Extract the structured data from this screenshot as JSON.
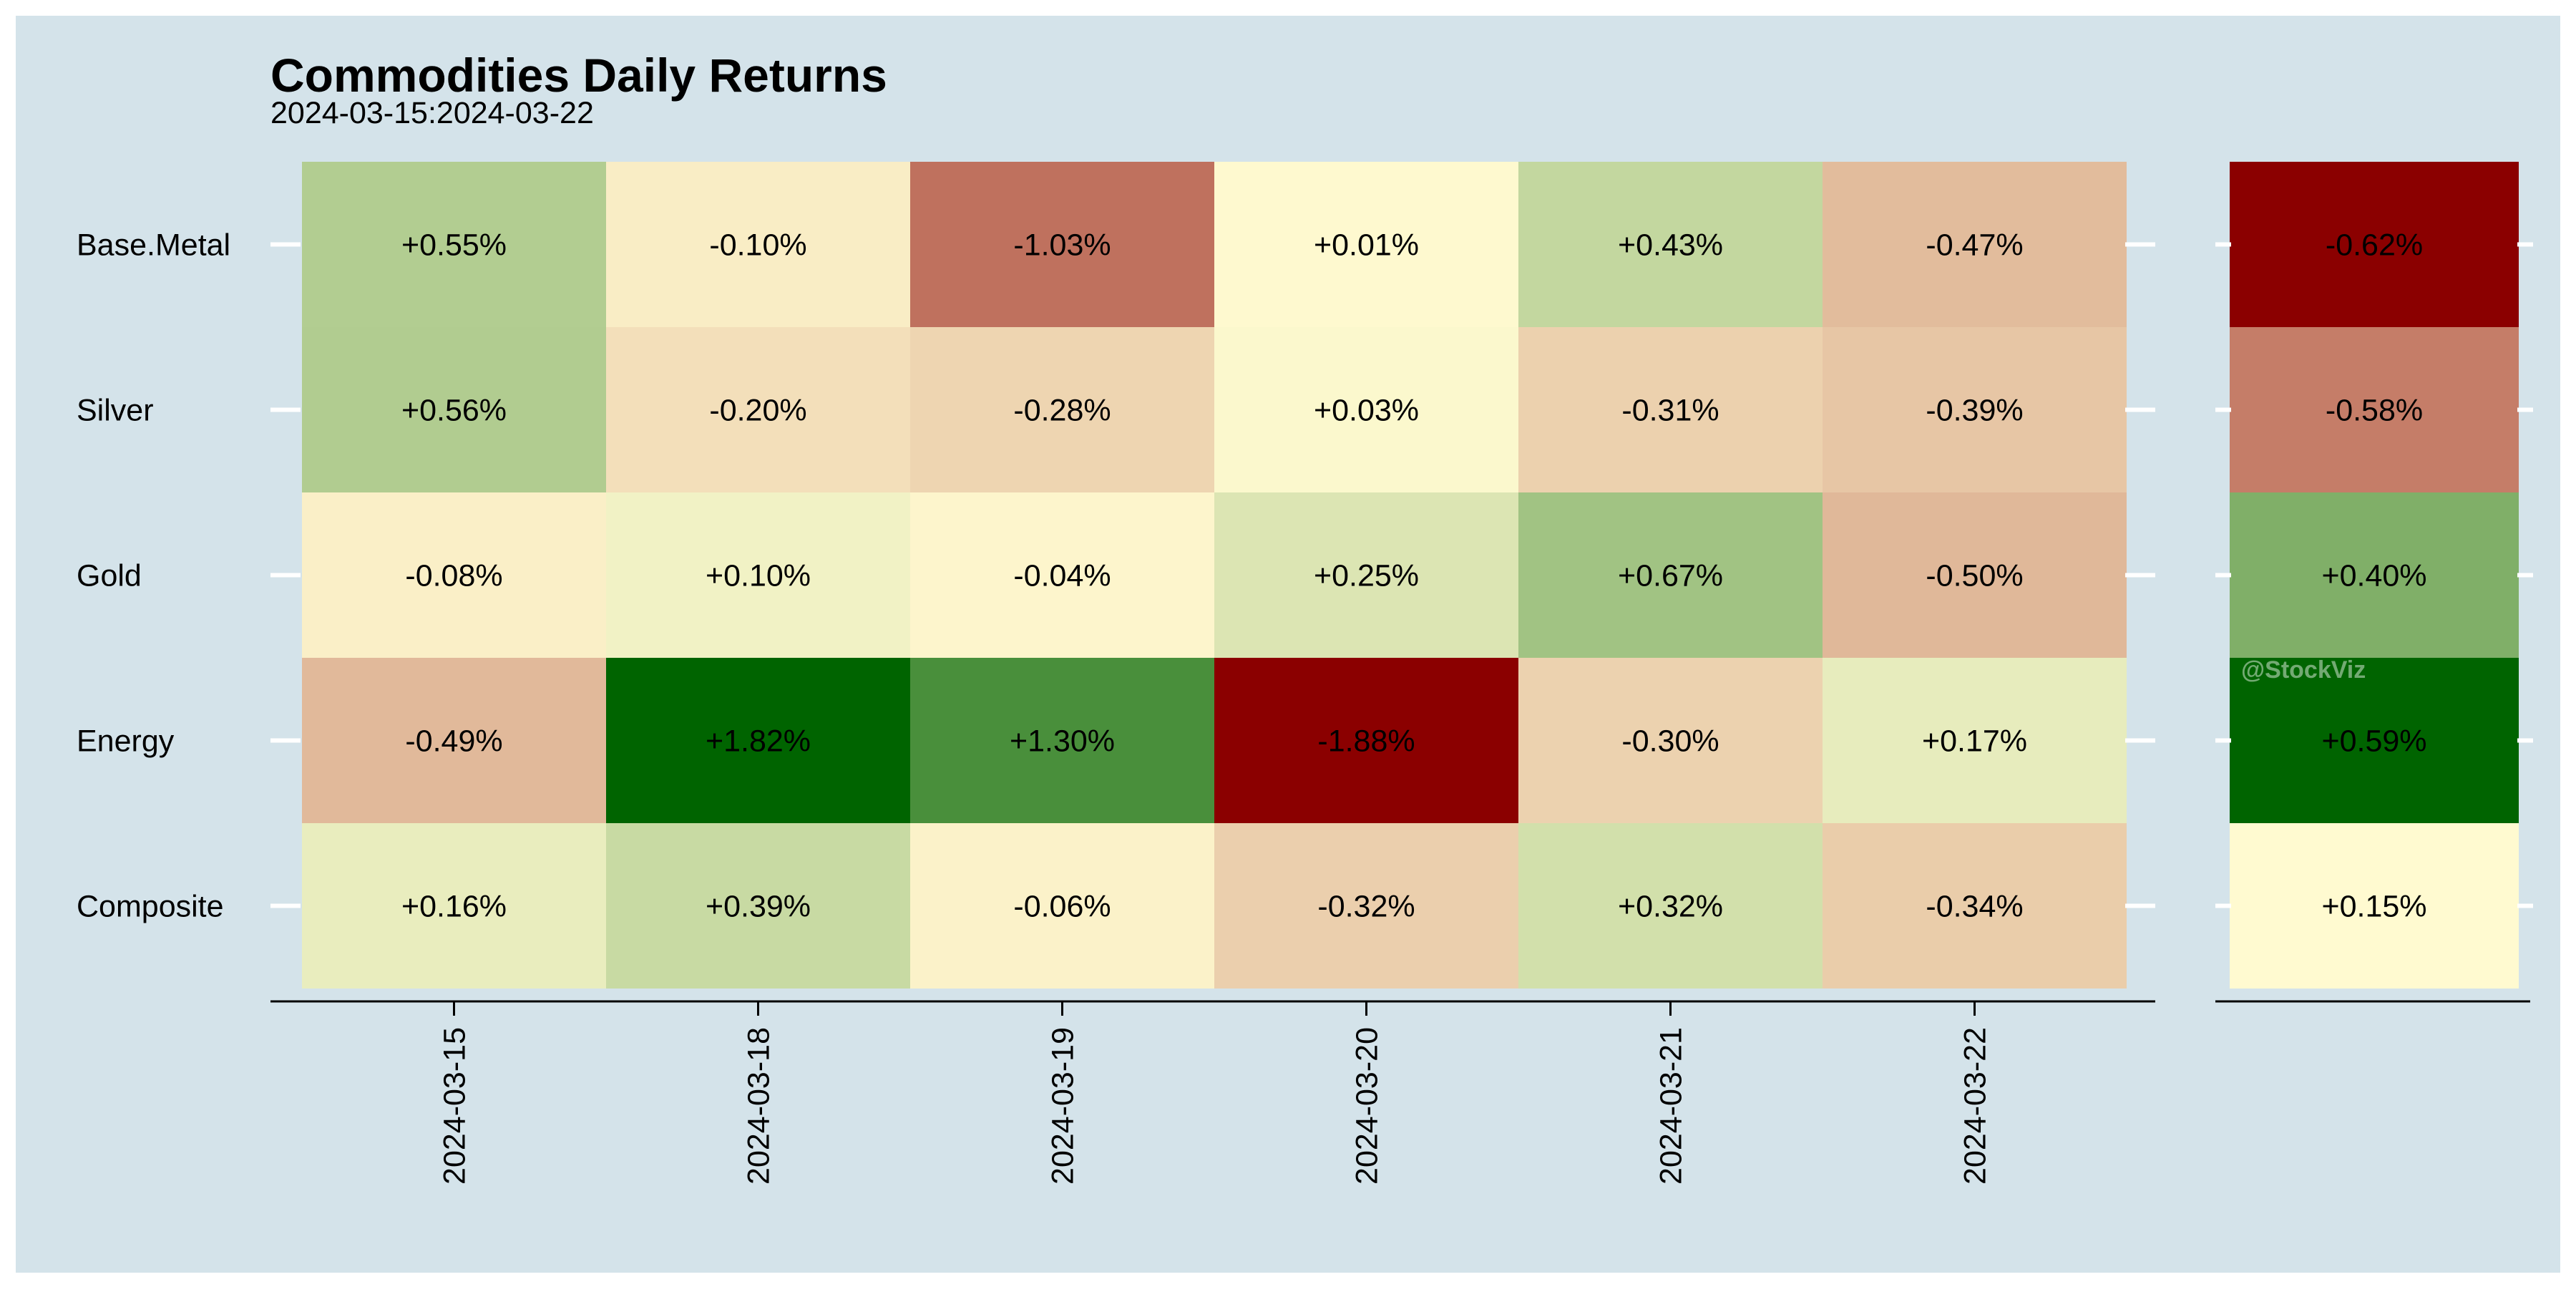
{
  "colors": {
    "panel_background": "#d4e3ea",
    "border": "#ffffff",
    "scale_low": "#8b0000",
    "scale_mid": "#fffad0",
    "scale_high": "#006400",
    "axis_line": "#000000",
    "row_tick": "#ffffff"
  },
  "watermark": "@StockViz",
  "chart_data": {
    "type": "heatmap",
    "title": "Commodities Daily Returns",
    "subtitle": "2024-03-15:2024-03-22",
    "rows": [
      "Base.Metal",
      "Silver",
      "Gold",
      "Energy",
      "Composite"
    ],
    "columns": [
      "2024-03-15",
      "2024-03-18",
      "2024-03-19",
      "2024-03-20",
      "2024-03-21",
      "2024-03-22"
    ],
    "values": [
      [
        0.55,
        -0.1,
        -1.03,
        0.01,
        0.43,
        -0.47
      ],
      [
        0.56,
        -0.2,
        -0.28,
        0.03,
        -0.31,
        -0.39
      ],
      [
        -0.08,
        0.1,
        -0.04,
        0.25,
        0.67,
        -0.5
      ],
      [
        -0.49,
        1.82,
        1.3,
        -1.88,
        -0.3,
        0.17
      ],
      [
        0.16,
        0.39,
        -0.06,
        -0.32,
        0.32,
        -0.34
      ]
    ],
    "labels": [
      [
        "+0.55%",
        "-0.10%",
        "-1.03%",
        "+0.01%",
        "+0.43%",
        "-0.47%"
      ],
      [
        "+0.56%",
        "-0.20%",
        "-0.28%",
        "+0.03%",
        "-0.31%",
        "-0.39%"
      ],
      [
        "-0.08%",
        "+0.10%",
        "-0.04%",
        "+0.25%",
        "+0.67%",
        "-0.50%"
      ],
      [
        "-0.49%",
        "+1.82%",
        "+1.30%",
        "-1.88%",
        "-0.30%",
        "+0.17%"
      ],
      [
        "+0.16%",
        "+0.39%",
        "-0.06%",
        "-0.32%",
        "+0.32%",
        "-0.34%"
      ]
    ],
    "summary_column": {
      "values": [
        -0.62,
        -0.58,
        0.4,
        0.59,
        0.15
      ],
      "labels": [
        "-0.62%",
        "-0.58%",
        "+0.40%",
        "+0.59%",
        "+0.15%"
      ]
    }
  }
}
